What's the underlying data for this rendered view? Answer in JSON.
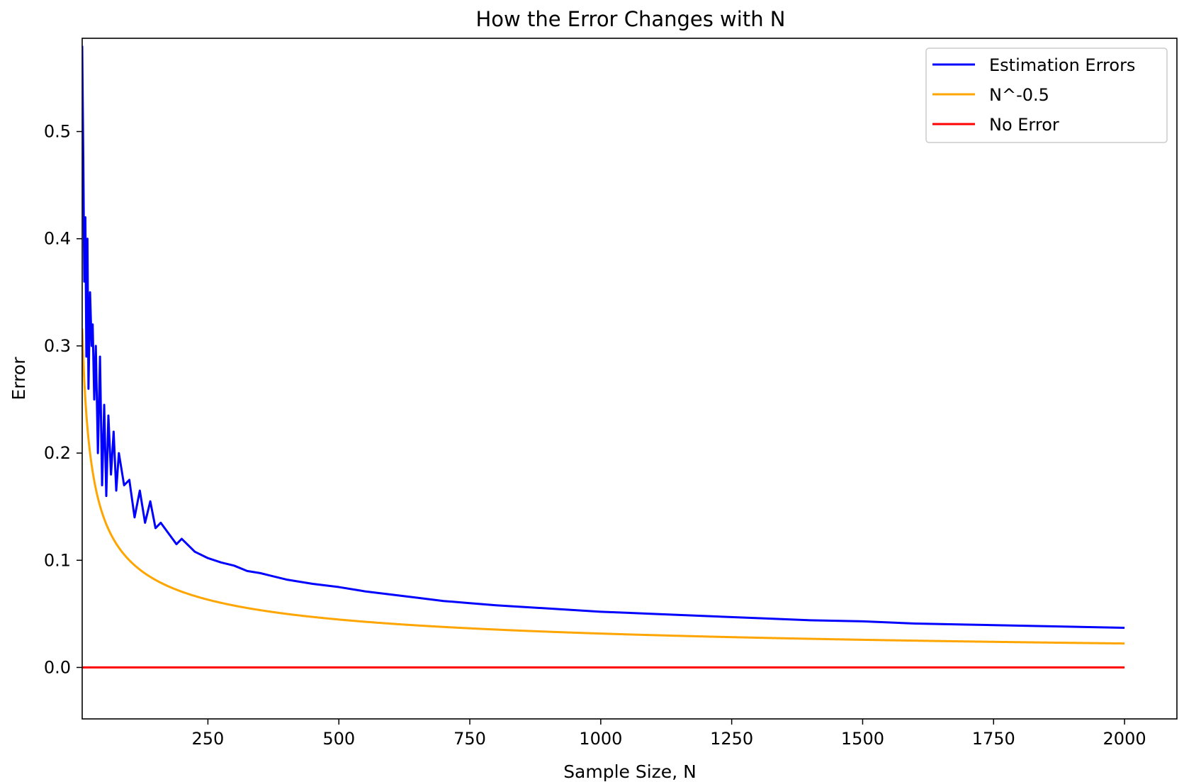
{
  "chart_data": {
    "type": "line",
    "title": "How the Error Changes with N",
    "xlabel": "Sample Size, N",
    "ylabel": "Error",
    "xlim": [
      10,
      2100
    ],
    "ylim": [
      -0.048,
      0.587
    ],
    "xticks": [
      250,
      500,
      750,
      1000,
      1250,
      1500,
      1750,
      2000
    ],
    "xtick_labels": [
      "250",
      "500",
      "750",
      "1000",
      "1250",
      "1500",
      "1750",
      "2000"
    ],
    "yticks": [
      0.0,
      0.1,
      0.2,
      0.3,
      0.4,
      0.5
    ],
    "ytick_labels": [
      "0.0",
      "0.1",
      "0.2",
      "0.3",
      "0.4",
      "0.5"
    ],
    "grid": false,
    "legend_position": "top-right",
    "series": [
      {
        "name": "Estimation Errors",
        "color": "#0000ff",
        "x": [
          10,
          12,
          14,
          16,
          18,
          20,
          22,
          25,
          28,
          30,
          33,
          36,
          40,
          44,
          48,
          52,
          56,
          60,
          65,
          70,
          75,
          80,
          90,
          100,
          110,
          120,
          130,
          140,
          150,
          160,
          175,
          190,
          200,
          225,
          250,
          275,
          300,
          325,
          350,
          375,
          400,
          450,
          500,
          550,
          600,
          650,
          700,
          750,
          800,
          900,
          1000,
          1100,
          1200,
          1300,
          1400,
          1500,
          1600,
          1700,
          1800,
          1900,
          2000
        ],
        "y": [
          0.58,
          0.48,
          0.36,
          0.42,
          0.29,
          0.4,
          0.26,
          0.35,
          0.3,
          0.32,
          0.25,
          0.3,
          0.2,
          0.29,
          0.17,
          0.245,
          0.16,
          0.235,
          0.18,
          0.22,
          0.165,
          0.2,
          0.17,
          0.175,
          0.14,
          0.165,
          0.135,
          0.155,
          0.13,
          0.135,
          0.125,
          0.115,
          0.12,
          0.108,
          0.102,
          0.098,
          0.095,
          0.09,
          0.088,
          0.085,
          0.082,
          0.078,
          0.075,
          0.071,
          0.068,
          0.065,
          0.062,
          0.06,
          0.058,
          0.055,
          0.052,
          0.05,
          0.048,
          0.046,
          0.044,
          0.043,
          0.041,
          0.04,
          0.039,
          0.038,
          0.037
        ]
      },
      {
        "name": "N^-0.5",
        "color": "#ffa500",
        "function": "x^-0.5",
        "x_range": [
          10,
          2000
        ]
      },
      {
        "name": "No Error",
        "color": "#ff0000",
        "x": [
          10,
          2000
        ],
        "y": [
          0,
          0
        ]
      }
    ]
  }
}
